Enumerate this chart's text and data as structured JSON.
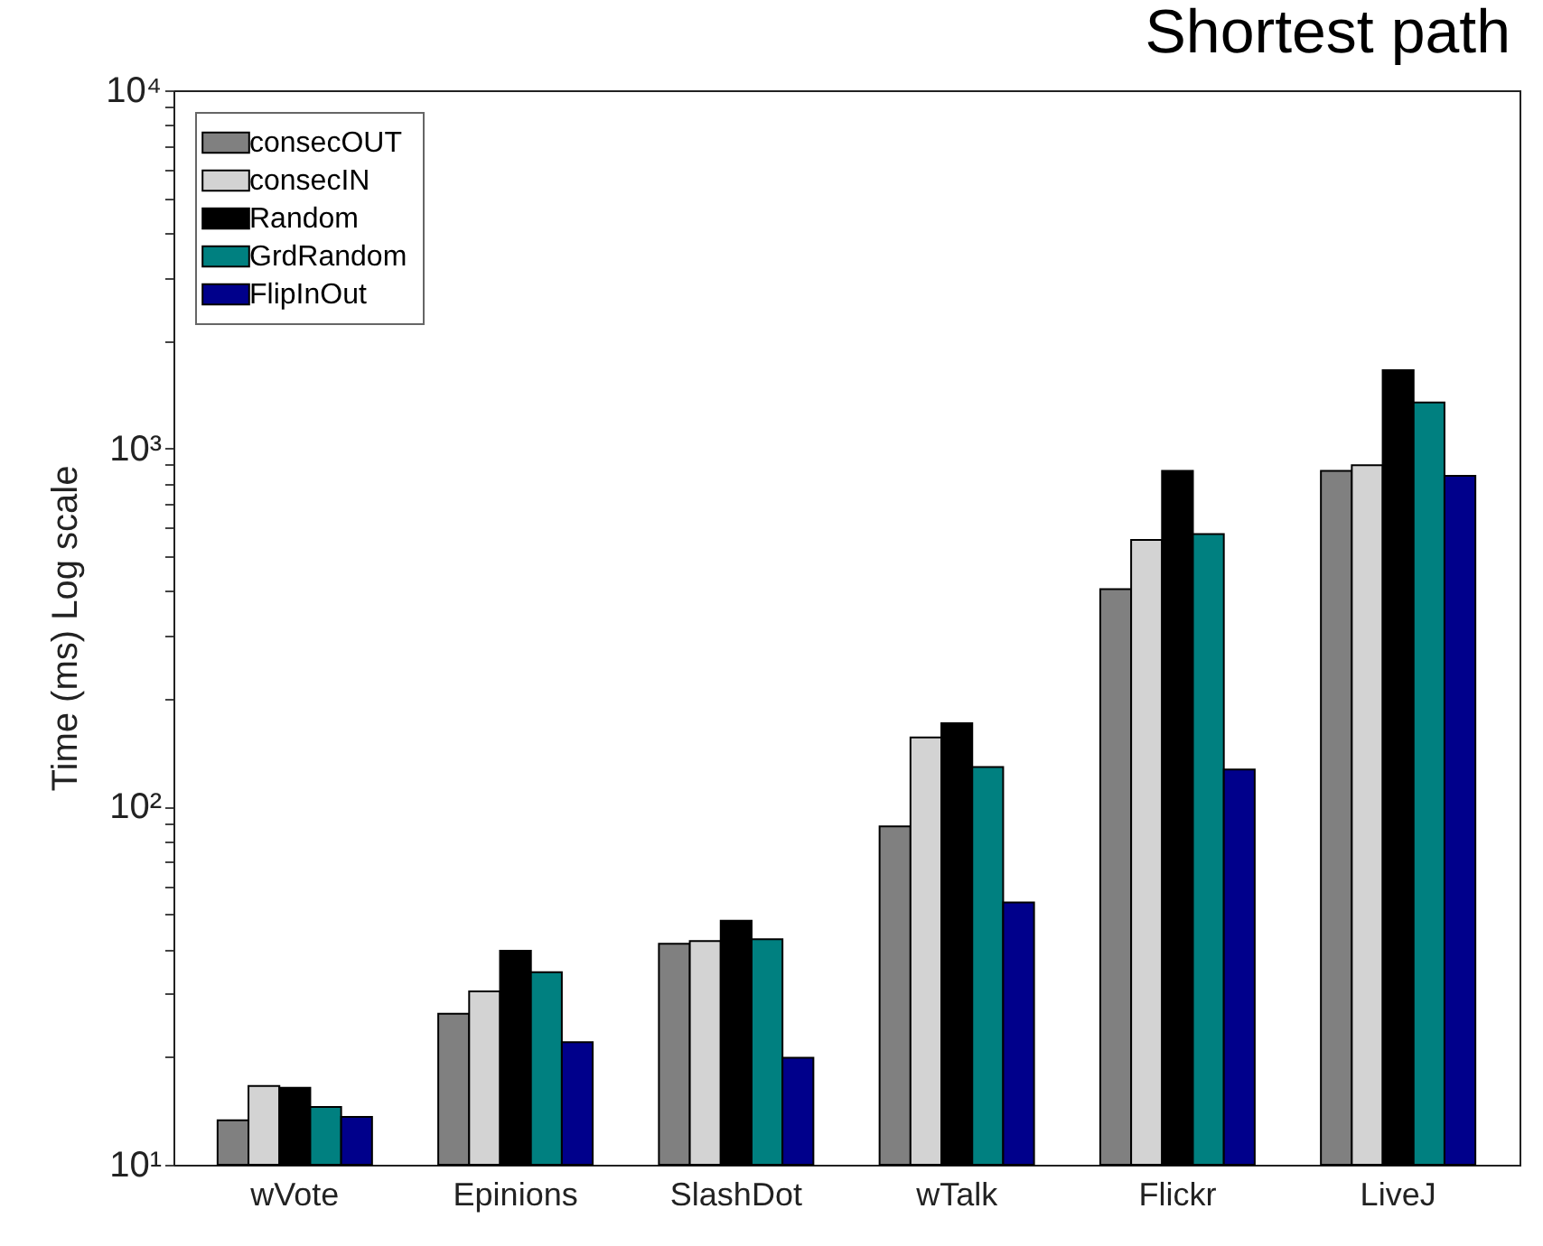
{
  "chart_data": {
    "type": "bar",
    "title": "Shortest path",
    "ylabel": "Time (ms) Log scale",
    "log": true,
    "grid": false,
    "legend": "top left",
    "categories": [
      "wVote",
      "Epinions",
      "SlashDot",
      "wTalk",
      "Flickr",
      "LiveJ"
    ],
    "ylim": [
      10,
      10000
    ],
    "yticks": [
      {
        "value": 10,
        "label": "10¹"
      },
      {
        "value": 20,
        "label": null
      },
      {
        "value": 30,
        "label": null
      },
      {
        "value": 40,
        "label": null
      },
      {
        "value": 50,
        "label": null
      },
      {
        "value": 60,
        "label": null
      },
      {
        "value": 70,
        "label": null
      },
      {
        "value": 80,
        "label": null
      },
      {
        "value": 90,
        "label": null
      },
      {
        "value": 100,
        "label": "10²"
      },
      {
        "value": 200,
        "label": null
      },
      {
        "value": 300,
        "label": null
      },
      {
        "value": 400,
        "label": null
      },
      {
        "value": 500,
        "label": null
      },
      {
        "value": 600,
        "label": null
      },
      {
        "value": 700,
        "label": null
      },
      {
        "value": 800,
        "label": null
      },
      {
        "value": 900,
        "label": null
      },
      {
        "value": 1000,
        "label": "10³"
      },
      {
        "value": 2000,
        "label": null
      },
      {
        "value": 3000,
        "label": null
      },
      {
        "value": 4000,
        "label": null
      },
      {
        "value": 5000,
        "label": null
      },
      {
        "value": 6000,
        "label": null
      },
      {
        "value": 7000,
        "label": null
      },
      {
        "value": 8000,
        "label": null
      },
      {
        "value": 9000,
        "label": null
      },
      {
        "value": 10000,
        "label": "10⁴"
      }
    ],
    "series": [
      {
        "name": "consecOUT",
        "color": "#808080",
        "values": [
          13.3,
          26.4,
          41.4,
          88,
          405,
          866
        ]
      },
      {
        "name": "consecIN",
        "color": "#d3d3d3",
        "values": [
          16.6,
          30.5,
          42.1,
          156,
          555,
          898
        ]
      },
      {
        "name": "Random",
        "color": "#000000",
        "values": [
          16.4,
          39.6,
          48,
          171,
          866,
          1653
        ]
      },
      {
        "name": "GrdRandom",
        "color": "#008080",
        "values": [
          14.5,
          34.5,
          42.6,
          129,
          577,
          1343
        ]
      },
      {
        "name": "FlipInOut",
        "color": "#00008b",
        "values": [
          13.6,
          22,
          19.9,
          54,
          127,
          838
        ]
      }
    ]
  }
}
